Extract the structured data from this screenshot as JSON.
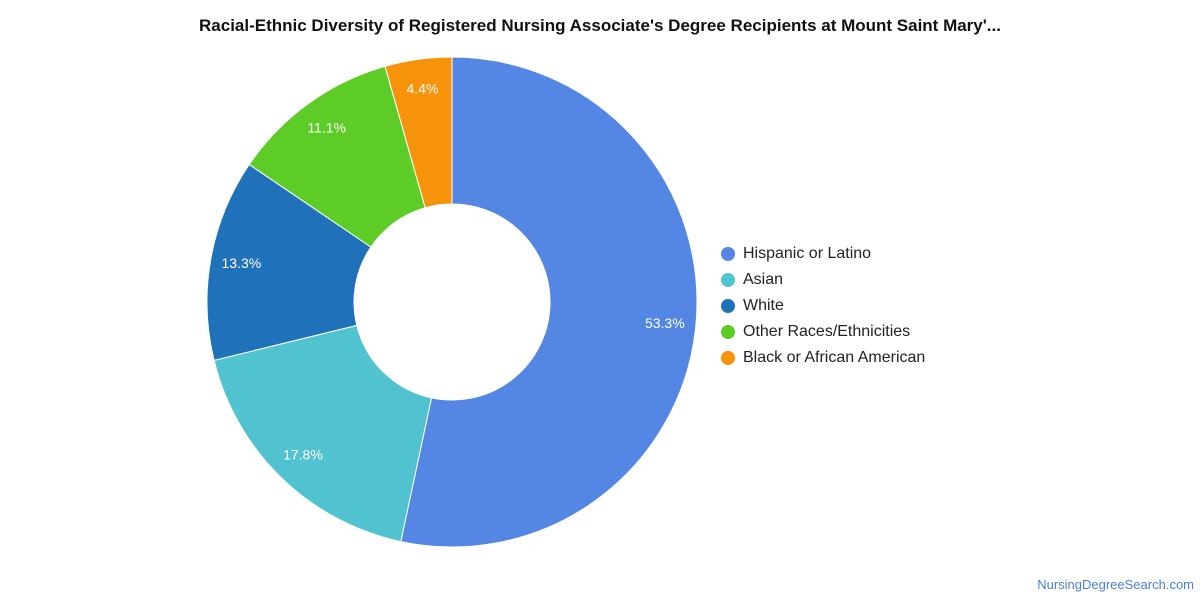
{
  "chart_data": {
    "type": "pie",
    "title": "Racial-Ethnic Diversity of Registered Nursing Associate's Degree Recipients at Mount Saint Mary'...",
    "series": [
      {
        "name": "Hispanic or Latino",
        "value": 53.3,
        "label": "53.3%",
        "color": "#5486e3"
      },
      {
        "name": "Asian",
        "value": 17.8,
        "label": "17.8%",
        "color": "#51c2cf"
      },
      {
        "name": "White",
        "value": 13.3,
        "label": "13.3%",
        "color": "#1f72b9"
      },
      {
        "name": "Other Races/Ethnicities",
        "value": 11.1,
        "label": "11.1%",
        "color": "#5ecc26"
      },
      {
        "name": "Black or African American",
        "value": 4.4,
        "label": "4.4%",
        "color": "#f7920b"
      }
    ],
    "legend_position": "right"
  },
  "source": "NursingDegreeSearch.com"
}
